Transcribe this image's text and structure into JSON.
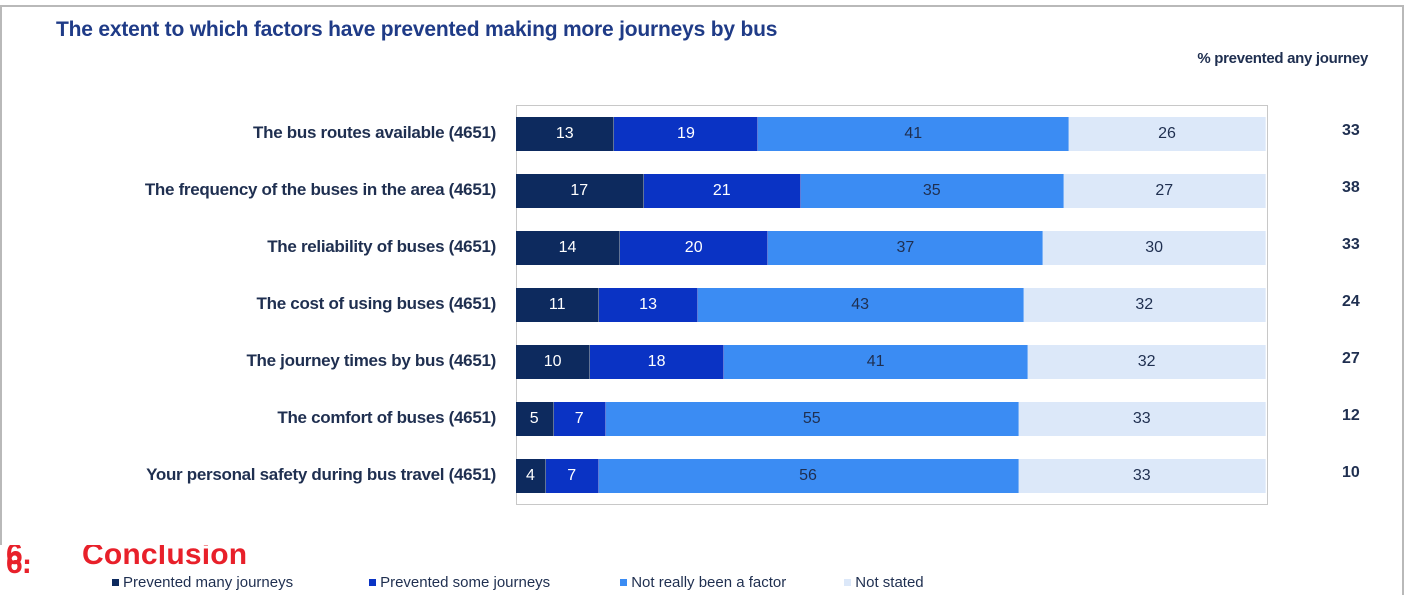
{
  "chart_data": {
    "type": "bar",
    "orientation": "horizontal",
    "stacked": true,
    "title": "The extent to which factors have prevented making more journeys by bus",
    "right_column_header": "% prevented any journey",
    "categories": [
      "The bus routes available (4651)",
      "The frequency of the buses in the area (4651)",
      "The reliability of buses (4651)",
      "The cost of using buses (4651)",
      "The journey times by bus (4651)",
      "The comfort of buses (4651)",
      "Your personal safety during bus travel (4651)"
    ],
    "series": [
      {
        "name": "Prevented many journeys",
        "color": "#0d2a5e",
        "values": [
          13,
          17,
          14,
          11,
          10,
          5,
          4
        ]
      },
      {
        "name": "Prevented some journeys",
        "color": "#0a33c4",
        "values": [
          19,
          21,
          20,
          13,
          18,
          7,
          7
        ]
      },
      {
        "name": "Not really been a factor",
        "color": "#3b8cf3",
        "values": [
          41,
          35,
          37,
          43,
          41,
          55,
          56
        ]
      },
      {
        "name": "Not stated",
        "color": "#dce8f9",
        "values": [
          26,
          27,
          30,
          32,
          32,
          33,
          33
        ]
      }
    ],
    "prevented_any_journey": [
      33,
      38,
      33,
      24,
      27,
      12,
      10
    ],
    "legend_position": "bottom",
    "xlim": [
      0,
      100
    ],
    "grid": false
  },
  "footer": {
    "section_number": "6.",
    "section_title": "Conclusion"
  }
}
